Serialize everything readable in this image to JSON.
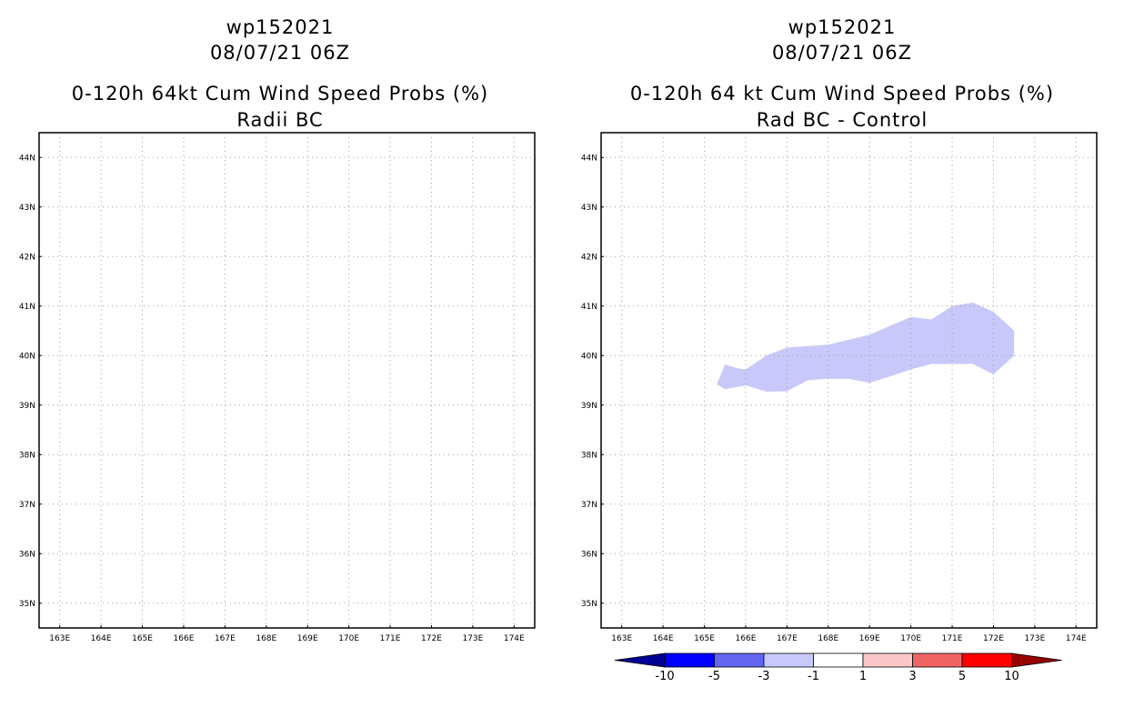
{
  "chart_data": [
    {
      "type": "heatmap",
      "storm_id": "wp152021",
      "date": "08/07/21 06Z",
      "title": "0-120h 64kt Cum Wind Speed Probs (%)",
      "subtitle": "Radii BC",
      "x_ticks": [
        "163E",
        "164E",
        "165E",
        "166E",
        "167E",
        "168E",
        "169E",
        "170E",
        "171E",
        "172E",
        "173E",
        "174E"
      ],
      "y_ticks": [
        "44N",
        "43N",
        "42N",
        "41N",
        "40N",
        "39N",
        "38N",
        "37N",
        "36N",
        "35N"
      ],
      "xlim": [
        162.5,
        174.5
      ],
      "ylim": [
        34.5,
        44.5
      ],
      "grid": true,
      "regions": []
    },
    {
      "type": "heatmap",
      "storm_id": "wp152021",
      "date": "08/07/21 06Z",
      "title": "0-120h 64 kt Cum Wind Speed Probs (%)",
      "subtitle": "Rad BC - Control",
      "x_ticks": [
        "163E",
        "164E",
        "165E",
        "166E",
        "167E",
        "168E",
        "169E",
        "170E",
        "171E",
        "172E",
        "173E",
        "174E"
      ],
      "y_ticks": [
        "44N",
        "43N",
        "42N",
        "41N",
        "40N",
        "39N",
        "38N",
        "37N",
        "36N",
        "35N"
      ],
      "xlim": [
        162.5,
        174.5
      ],
      "ylim": [
        34.5,
        44.5
      ],
      "grid": true,
      "regions": [
        {
          "value_range": "-3 to -1",
          "color": "#c8c8fa",
          "polygon": [
            [
              165.3,
              39.42
            ],
            [
              165.5,
              39.82
            ],
            [
              165.8,
              39.74
            ],
            [
              166.0,
              39.72
            ],
            [
              166.5,
              40.0
            ],
            [
              167.0,
              40.16
            ],
            [
              168.0,
              40.22
            ],
            [
              169.0,
              40.42
            ],
            [
              169.5,
              40.6
            ],
            [
              170.0,
              40.78
            ],
            [
              170.5,
              40.73
            ],
            [
              171.0,
              41.0
            ],
            [
              171.5,
              41.07
            ],
            [
              172.0,
              40.88
            ],
            [
              172.5,
              40.5
            ],
            [
              172.5,
              40.0
            ],
            [
              172.0,
              39.62
            ],
            [
              171.5,
              39.83
            ],
            [
              171.0,
              39.83
            ],
            [
              170.5,
              39.83
            ],
            [
              170.0,
              39.72
            ],
            [
              169.5,
              39.58
            ],
            [
              169.0,
              39.45
            ],
            [
              168.5,
              39.53
            ],
            [
              168.0,
              39.53
            ],
            [
              167.5,
              39.5
            ],
            [
              167.0,
              39.28
            ],
            [
              166.5,
              39.27
            ],
            [
              166.0,
              39.4
            ],
            [
              165.5,
              39.32
            ]
          ]
        }
      ],
      "colorbar": {
        "labels": [
          "-10",
          "-5",
          "-3",
          "-1",
          "1",
          "3",
          "5",
          "10"
        ],
        "colors": [
          "#000096",
          "#0000ff",
          "#6464f0",
          "#c8c8fa",
          "#ffffff",
          "#fac8c8",
          "#f06464",
          "#ff0000",
          "#960000"
        ]
      }
    }
  ]
}
